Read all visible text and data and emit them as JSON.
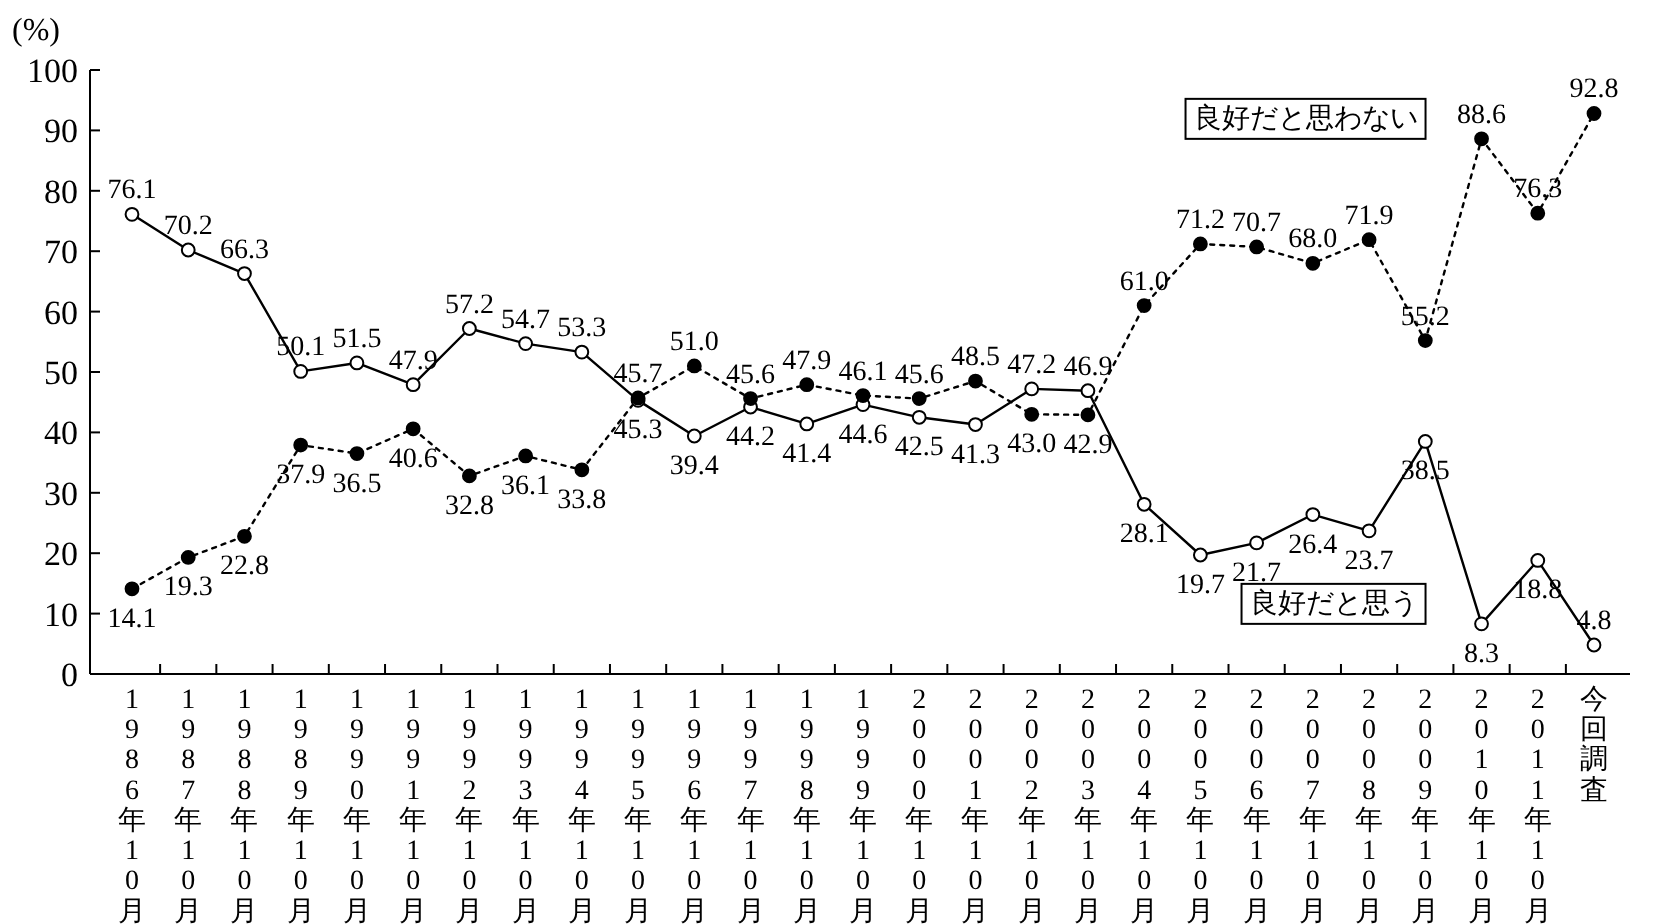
{
  "chart_data": {
    "type": "line",
    "ylabel": "(%)",
    "categories": [
      "1986年10月",
      "1987年10月",
      "1988年10月",
      "1989年10月",
      "1990年10月",
      "1991年10月",
      "1992年10月",
      "1993年10月",
      "1994年10月",
      "1995年10月",
      "1996年10月",
      "1997年10月",
      "1998年10月",
      "1999年10月",
      "2000年10月",
      "2001年10月",
      "2002年10月",
      "2003年10月",
      "2004年10月",
      "2005年10月",
      "2006年10月",
      "2007年10月",
      "2008年10月",
      "2009年10月",
      "2010年10月",
      "2011年10月",
      "今回調査"
    ],
    "ylim": [
      0,
      100
    ],
    "yticks": [
      0,
      10,
      20,
      30,
      40,
      50,
      60,
      70,
      80,
      90,
      100
    ],
    "grid": false,
    "legend": false,
    "marker": "circle",
    "data_labels": true,
    "series": [
      {
        "name": "良好だと思う",
        "color": "#000000",
        "line_style": "solid",
        "values": [
          76.1,
          70.2,
          66.3,
          50.1,
          51.5,
          47.9,
          57.2,
          54.7,
          53.3,
          45.3,
          39.4,
          44.2,
          41.4,
          44.6,
          42.5,
          41.3,
          47.2,
          46.9,
          28.1,
          19.7,
          21.7,
          26.4,
          23.7,
          38.5,
          8.3,
          18.8,
          4.8
        ],
        "value_labels": [
          "76.1",
          "70.2",
          "66.3",
          "50.1",
          "51.5",
          "47.9",
          "57.2",
          "54.7",
          "53.3",
          "45.3",
          "39.4",
          "44.2",
          "41.4",
          "44.6",
          "42.5",
          "41.3",
          "47.2",
          "46.9",
          "28.1",
          "19.7",
          "21.7",
          "26.4",
          "23.7",
          "38.5",
          "8.3",
          "18.8",
          "4.8"
        ]
      },
      {
        "name": "良好だと思わない",
        "color": "#000000",
        "line_style": "dotted",
        "values": [
          14.1,
          19.3,
          22.8,
          37.9,
          36.5,
          40.6,
          32.8,
          36.1,
          33.8,
          45.7,
          51.0,
          45.6,
          47.9,
          46.1,
          45.6,
          48.5,
          43.0,
          42.9,
          61.0,
          71.2,
          70.7,
          68.0,
          71.9,
          55.2,
          88.6,
          76.3,
          92.8
        ],
        "value_labels": [
          "14.1",
          "19.3",
          "22.8",
          "37.9",
          "36.5",
          "40.6",
          "32.8",
          "36.1",
          "33.8",
          "45.7",
          "51.0",
          "45.6",
          "47.9",
          "46.1",
          "45.6",
          "48.5",
          "43.0",
          "42.9",
          "61.0",
          "71.2",
          "70.7",
          "68.0",
          "71.9",
          "55.2",
          "88.6",
          "76.3",
          "92.8"
        ]
      }
    ]
  }
}
